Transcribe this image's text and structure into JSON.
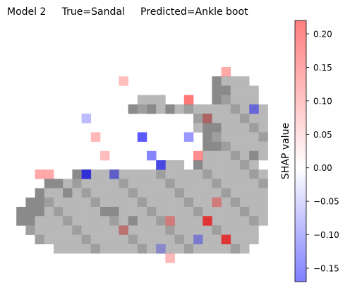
{
  "chart_data": {
    "type": "heatmap",
    "title": "Model 2     True=Sandal     Predicted=Ankle boot",
    "xlabel": "",
    "ylabel": "",
    "grid": false,
    "rows": 28,
    "cols": 28,
    "colorbar": {
      "label": "SHAP value",
      "vmin": -0.17,
      "vmax": 0.22,
      "ticks": [
        0.2,
        0.15,
        0.1,
        0.05,
        0.0,
        -0.05,
        -0.1,
        -0.15
      ],
      "tick_labels": [
        "0.20",
        "0.15",
        "0.10",
        "0.05",
        "0.00",
        "−0.05",
        "−0.10",
        "−0.15"
      ],
      "colormap": [
        "#7f7fff",
        "#ffffff",
        "#ff7f7f"
      ]
    },
    "background_image": {
      "description_of_values": "grayscale image intensity 0-255 per pixel, shown under SHAP overlay",
      "shape_grays": {
        "light": "#b8b8b8",
        "mid": "#9e9e9e",
        "dark": "#8a8a8a"
      }
    },
    "highlights": [
      {
        "row": 5,
        "col": 23,
        "value": 0.08
      },
      {
        "row": 6,
        "col": 12,
        "value": 0.05
      },
      {
        "row": 8,
        "col": 19,
        "value": 0.15
      },
      {
        "row": 9,
        "col": 26,
        "value": -0.09
      },
      {
        "row": 10,
        "col": 8,
        "value": -0.04
      },
      {
        "row": 10,
        "col": 21,
        "value": 0.06
      },
      {
        "row": 12,
        "col": 9,
        "value": 0.06
      },
      {
        "row": 12,
        "col": 14,
        "value": -0.15
      },
      {
        "row": 12,
        "col": 19,
        "value": -0.08
      },
      {
        "row": 14,
        "col": 10,
        "value": 0.05
      },
      {
        "row": 14,
        "col": 15,
        "value": -0.1
      },
      {
        "row": 14,
        "col": 20,
        "value": 0.12
      },
      {
        "row": 15,
        "col": 16,
        "value": -0.14
      },
      {
        "row": 16,
        "col": 3,
        "value": 0.08
      },
      {
        "row": 16,
        "col": 4,
        "value": 0.08
      },
      {
        "row": 16,
        "col": 8,
        "value": -0.15
      },
      {
        "row": 16,
        "col": 11,
        "value": -0.08
      },
      {
        "row": 19,
        "col": 22,
        "value": 0.08
      },
      {
        "row": 21,
        "col": 17,
        "value": 0.08
      },
      {
        "row": 21,
        "col": 21,
        "value": 0.2
      },
      {
        "row": 22,
        "col": 12,
        "value": 0.06
      },
      {
        "row": 23,
        "col": 20,
        "value": -0.06
      },
      {
        "row": 23,
        "col": 23,
        "value": 0.2
      },
      {
        "row": 24,
        "col": 16,
        "value": -0.04
      },
      {
        "row": 25,
        "col": 17,
        "value": 0.06
      }
    ]
  }
}
